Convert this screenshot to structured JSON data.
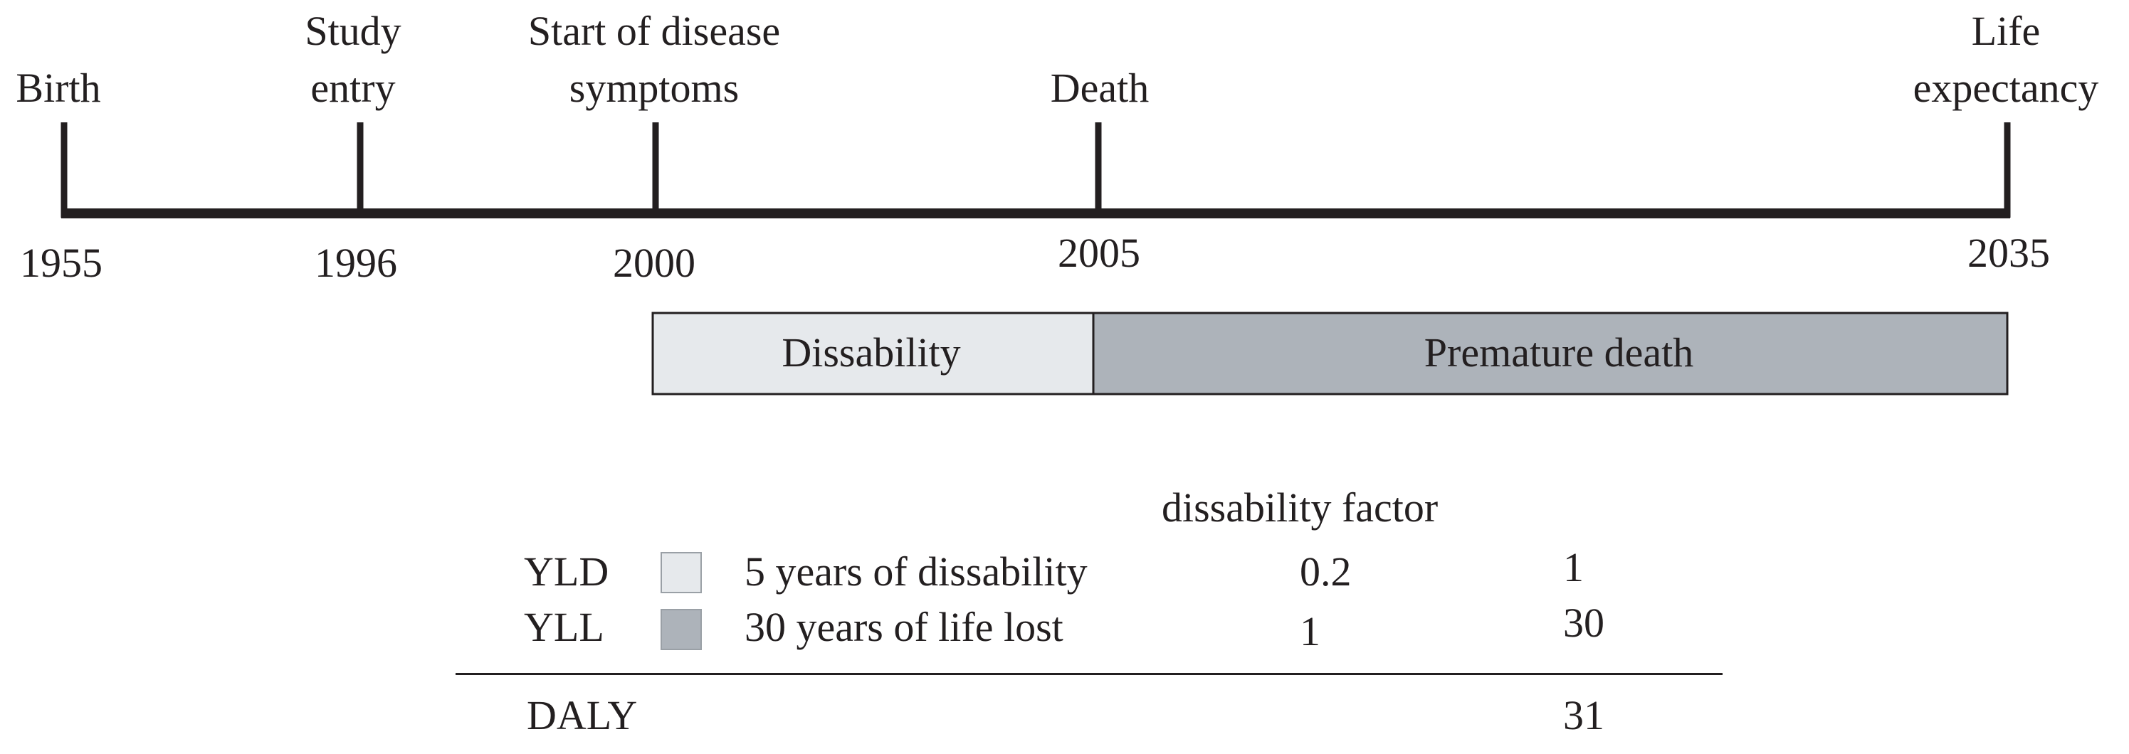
{
  "timeline": {
    "events": [
      {
        "id": "birth",
        "label": "Birth",
        "year": "1955"
      },
      {
        "id": "study-entry",
        "label": "Study\nentry",
        "year": "1996"
      },
      {
        "id": "symptoms",
        "label": "Start of disease\nsymptoms",
        "year": "2000"
      },
      {
        "id": "death",
        "label": "Death",
        "year": "2005"
      },
      {
        "id": "life-expectancy",
        "label": "Life\nexpectancy",
        "year": "2035"
      }
    ]
  },
  "bars": {
    "disability": {
      "label": "Dissability",
      "color": "#e6e9ec"
    },
    "premature": {
      "label": "Premature death",
      "color": "#adb3ba"
    }
  },
  "table": {
    "factor_header": "dissability factor",
    "rows": [
      {
        "abbr": "YLD",
        "description": "5 years of dissability",
        "factor": "0.2",
        "value": "1",
        "swatch_color": "#e6e9ec"
      },
      {
        "abbr": "YLL",
        "description": "30 years of life lost",
        "factor": "1",
        "value": "30",
        "swatch_color": "#adb3ba"
      }
    ],
    "total": {
      "abbr": "DALY",
      "value": "31"
    }
  }
}
